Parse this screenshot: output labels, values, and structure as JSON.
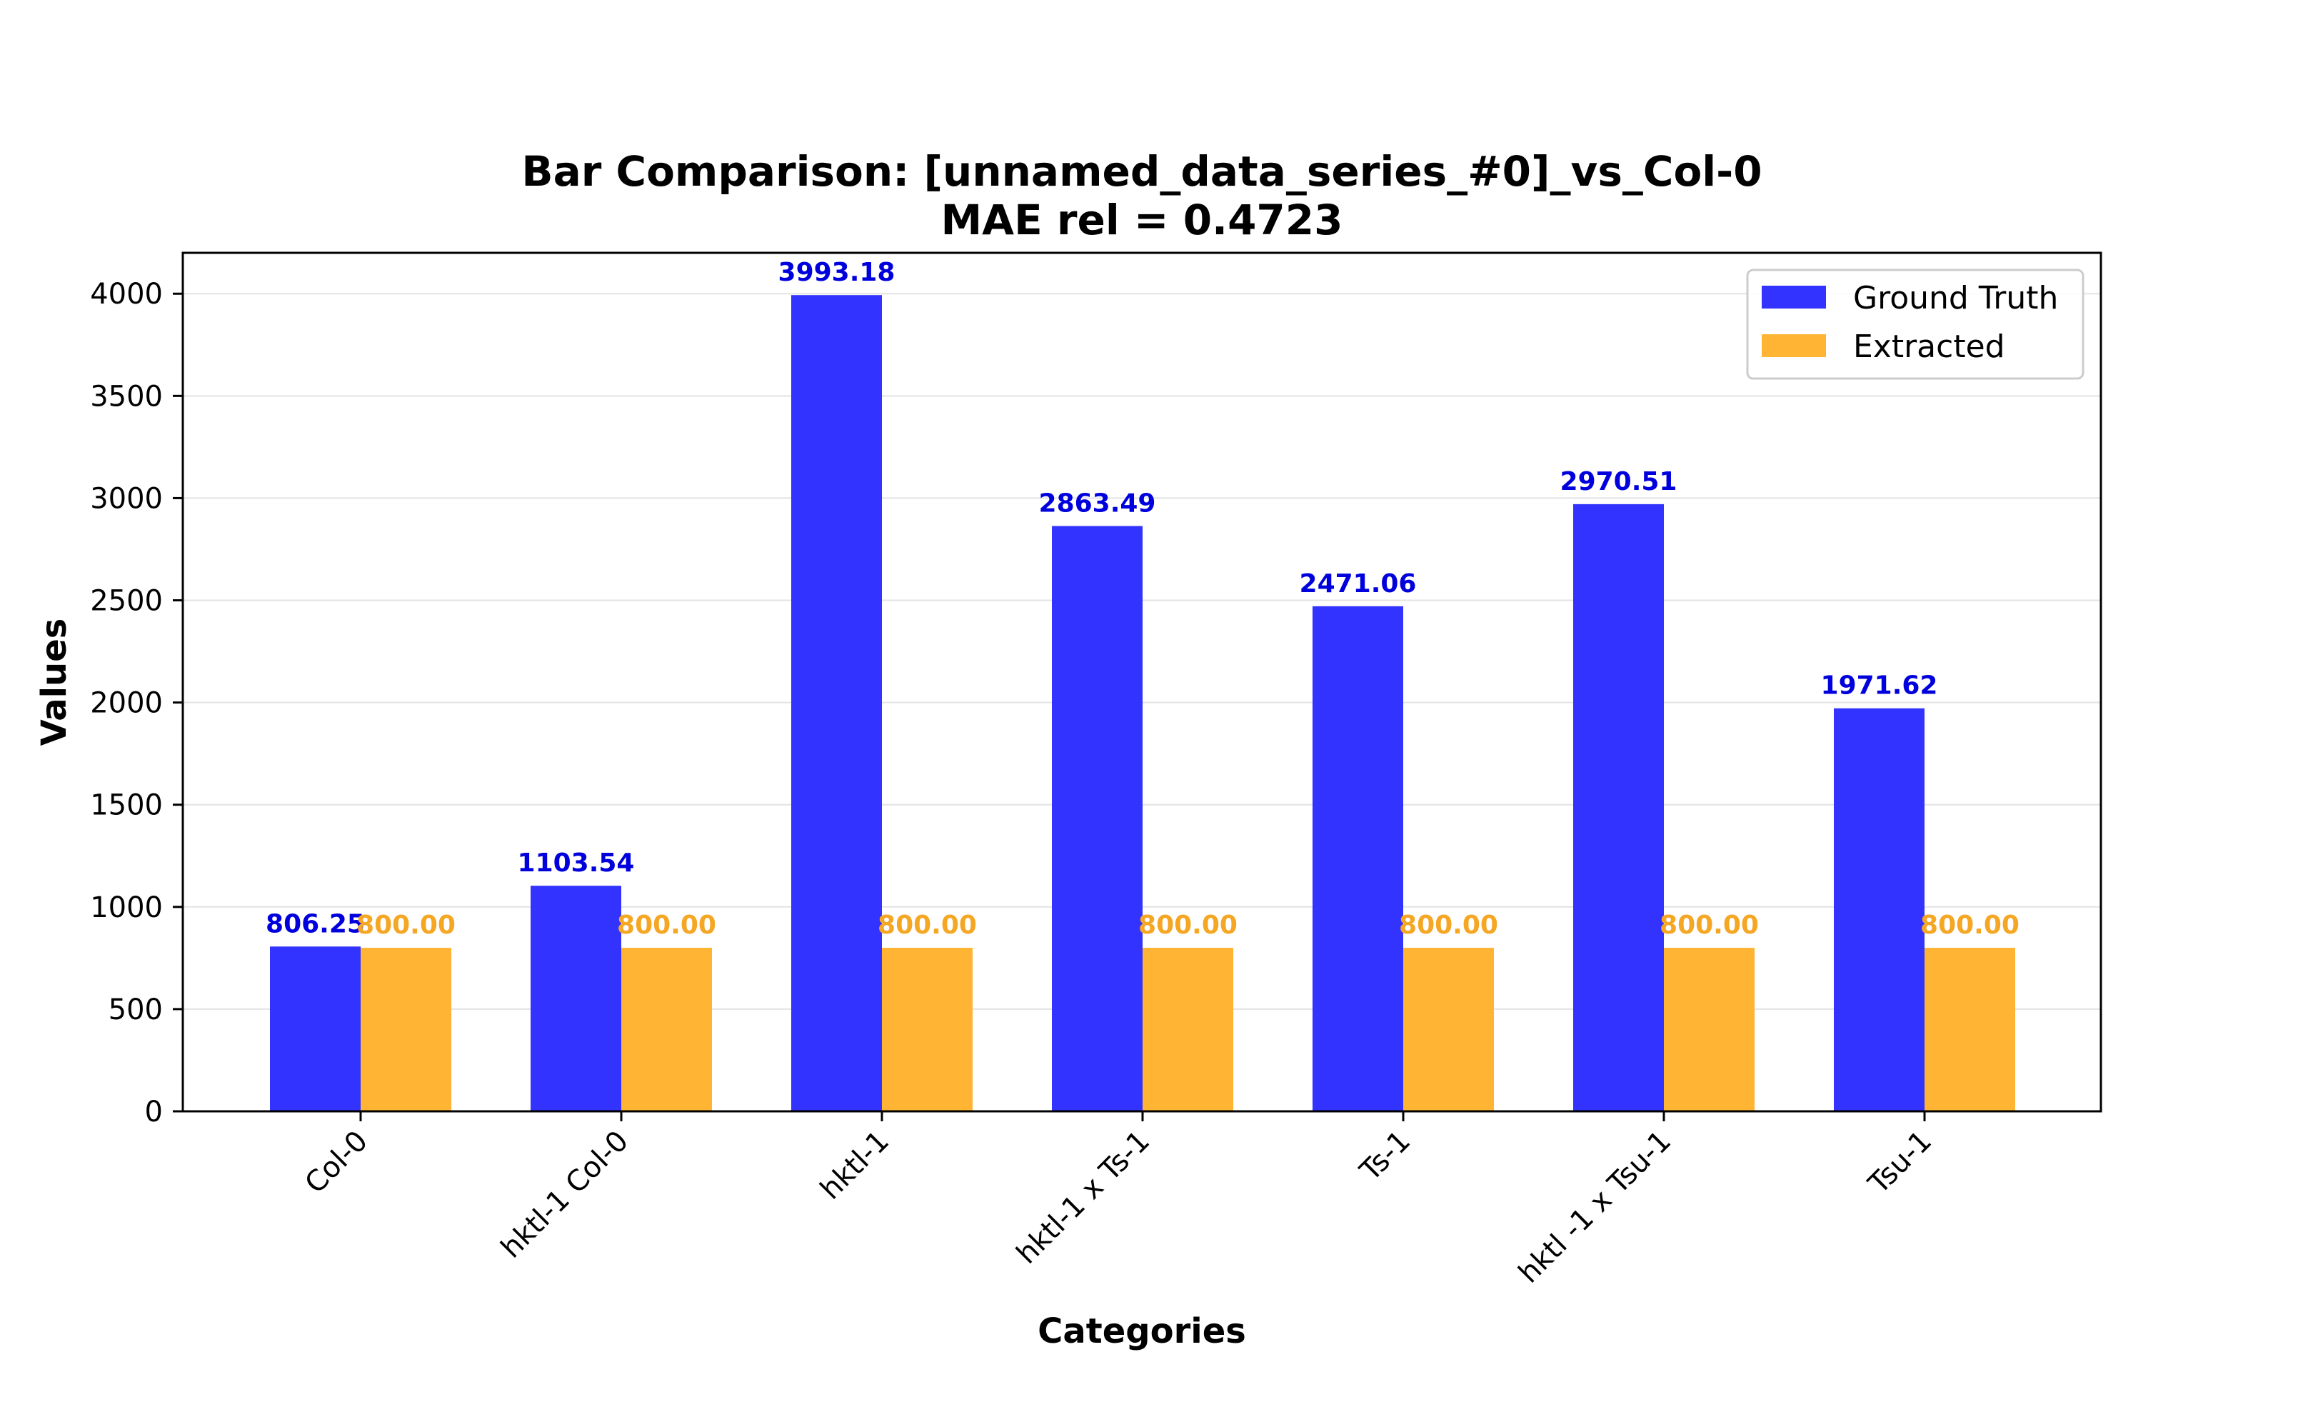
{
  "chart_data": {
    "type": "bar",
    "title_line1": "Bar Comparison: [unnamed_data_series_#0]_vs_Col-0",
    "title_line2": "MAE rel = 0.4723",
    "xlabel": "Categories",
    "ylabel": "Values",
    "categories": [
      "Col-0",
      "hktl-1 Col-0",
      "hktl-1",
      "hktl-1 x Ts-1",
      "Ts-1",
      "hktl -1 x Tsu-1",
      "Tsu-1"
    ],
    "series": [
      {
        "name": "Ground Truth",
        "color": "#3333ff",
        "label_color": "#0000dd",
        "values": [
          806.25,
          1103.54,
          3993.18,
          2863.49,
          2471.06,
          2970.51,
          1971.62
        ],
        "value_labels": [
          "806.25",
          "1103.54",
          "3993.18",
          "2863.49",
          "2471.06",
          "2970.51",
          "1971.62"
        ]
      },
      {
        "name": "Extracted",
        "color": "#ffb533",
        "label_color": "#f5a623",
        "values": [
          800,
          800,
          800,
          800,
          800,
          800,
          800
        ],
        "value_labels": [
          "800.00",
          "800.00",
          "800.00",
          "800.00",
          "800.00",
          "800.00",
          "800.00"
        ]
      }
    ],
    "ylim": [
      0,
      4200
    ],
    "yticks": [
      0,
      500,
      1000,
      1500,
      2000,
      2500,
      3000,
      3500,
      4000
    ],
    "grid": "horizontal",
    "legend_position": "top-right"
  }
}
